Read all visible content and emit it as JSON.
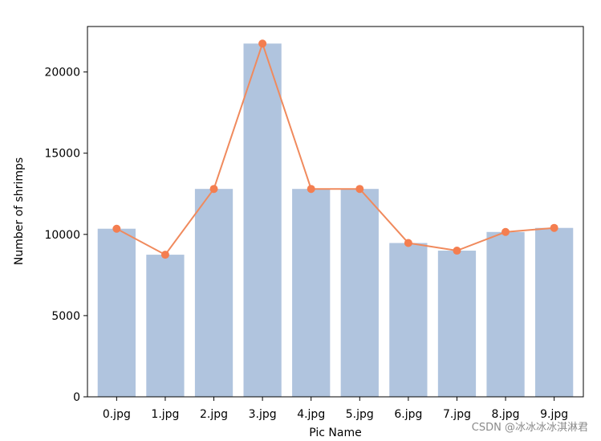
{
  "chart_data": {
    "type": "bar",
    "categories": [
      "0.jpg",
      "1.jpg",
      "2.jpg",
      "3.jpg",
      "4.jpg",
      "5.jpg",
      "6.jpg",
      "7.jpg",
      "8.jpg",
      "9.jpg"
    ],
    "values": [
      10350,
      8750,
      12800,
      21750,
      12800,
      12800,
      9470,
      9000,
      10150,
      10400
    ],
    "line_values": [
      10350,
      8750,
      12800,
      21750,
      12800,
      12800,
      9470,
      9000,
      10150,
      10400
    ],
    "title": "",
    "xlabel": "Pic Name",
    "ylabel": "Number of shrimps",
    "ylim": [
      0,
      22800
    ],
    "yticks": [
      0,
      5000,
      10000,
      15000,
      20000
    ],
    "bar_color": "#b0c4de",
    "line_color": "#f08a5d",
    "marker_color": "#f47e50",
    "grid": false,
    "legend": "none"
  },
  "watermark": "CSDN @冰冰冰冰淇淋君"
}
